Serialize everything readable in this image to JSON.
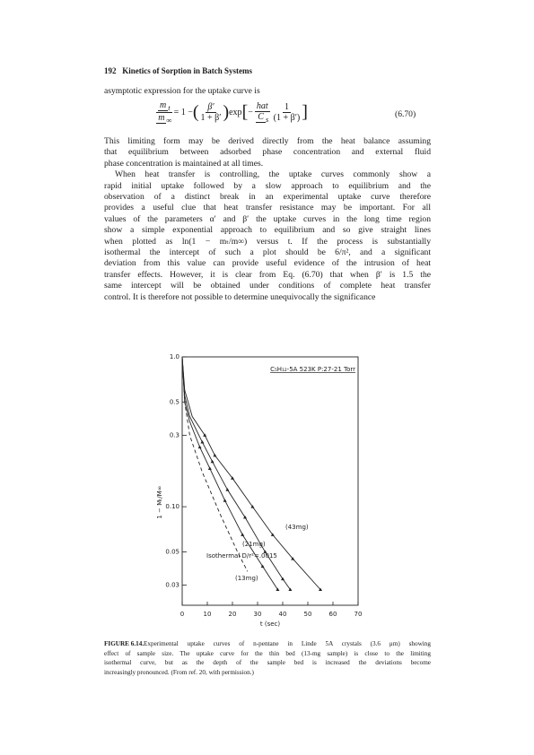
{
  "header": {
    "number": "192",
    "title": "Kinetics of Sorption in Batch Systems"
  },
  "intro": "asymptotic expression for the uptake curve is",
  "equation": {
    "lhs_num": "m",
    "lhs_num_sub": "t",
    "lhs_den": "m",
    "lhs_den_sub": "∞",
    "equals": "= 1 −",
    "lparen": "(",
    "f1_num": "β′",
    "f1_den": "1 + β′",
    "rparen": ")",
    "exp": "exp",
    "lbracket": "[",
    "minus": "−",
    "f2_num": "hat",
    "f2_den": "C",
    "f2_den_sub": "s",
    "f3_num": "1",
    "f3_den": "(1 + β′)",
    "rbracket": "]",
    "number": "(6.70)"
  },
  "paragraphs": [
    {
      "lines": [
        "This limiting form may be derived directly from the heat balance assuming",
        "that equilibrium between adsorbed phase concentration and external fluid",
        "phase concentration is maintained at all times."
      ]
    },
    {
      "lines": [
        "When heat transfer is controlling, the uptake curves commonly show a",
        "rapid initial uptake followed by a slow approach to equilibrium and the",
        "observation of a distinct break in an experimental uptake curve therefore",
        "provides a useful clue that heat transfer resistance may be important. For all",
        "values of the parameters α′ and β′ the uptake curves in the long time region",
        "show a simple exponential approach to equilibrium and so give straight lines",
        "when plotted as ln(1 − mₜ/m∞) versus t. If the process is substantially",
        "isothermal the intercept of such a plot should be 6/π², and a significant",
        "deviation from this value can provide useful evidence of the intrusion of heat",
        "transfer effects. However, it is clear from Eq. (6.70) that when β′ is 1.5 the",
        "same intercept will be obtained under conditions of complete heat transfer",
        "control. It is therefore not possible to determine unequivocally the significance"
      ]
    }
  ],
  "figure": {
    "chart": {
      "type": "line",
      "title": "C₅H₁₂-5A  523K  P:27-21 Torr",
      "x_label": "t (sec)",
      "y_label": "1 − Mₜ/M∞",
      "log_y": true,
      "xlim": [
        0,
        70
      ],
      "xticks": [
        0,
        10,
        20,
        30,
        40,
        50,
        60,
        70
      ],
      "ylim": [
        0.022,
        1.0
      ],
      "yticks": [
        {
          "value": 1.0,
          "label": "1.0"
        },
        0.5,
        0.3,
        {
          "value": 0.1,
          "label": "0.10"
        },
        0.05,
        0.03
      ],
      "series": [
        {
          "name": "(43mg)",
          "color": "#222",
          "dashed": false,
          "x": [
            0,
            1,
            4,
            9,
            13,
            20,
            28,
            36,
            44,
            55
          ],
          "values": [
            1.0,
            0.6,
            0.4,
            0.3,
            0.22,
            0.155,
            0.1,
            0.065,
            0.045,
            0.028
          ]
        },
        {
          "name": "(21mg)",
          "color": "#222",
          "dashed": false,
          "x": [
            0,
            1,
            3,
            8,
            12,
            18,
            25,
            33,
            40,
            43
          ],
          "values": [
            1.0,
            0.55,
            0.4,
            0.27,
            0.2,
            0.13,
            0.085,
            0.05,
            0.033,
            0.028
          ]
        },
        {
          "name": "(13mg)",
          "color": "#222",
          "dashed": false,
          "x": [
            0,
            1,
            3,
            7,
            11,
            17,
            24,
            32,
            38
          ],
          "values": [
            1.0,
            0.5,
            0.37,
            0.25,
            0.18,
            0.11,
            0.065,
            0.04,
            0.028
          ]
        },
        {
          "name": "Isothermal D/r²=.0015",
          "color": "#222",
          "dashed": true,
          "x": [
            0,
            1,
            3,
            8,
            15,
            22,
            26
          ],
          "values": [
            1.0,
            0.5,
            0.3,
            0.17,
            0.09,
            0.05,
            0.037
          ]
        }
      ]
    },
    "caption_label": "FIGURE 6.14.",
    "caption_lines": [
      "Experimental uptake curves of n-pentane in Linde 5A crystals (3.6 μm) showing",
      "effect of sample size. The uptake curve for the thin bed (13-mg sample) is close to the limiting",
      "isothermal curve, but as the depth of the sample bed is increased the deviations become",
      "increasingly pronounced. (From ref. 20, with permission.)"
    ]
  }
}
